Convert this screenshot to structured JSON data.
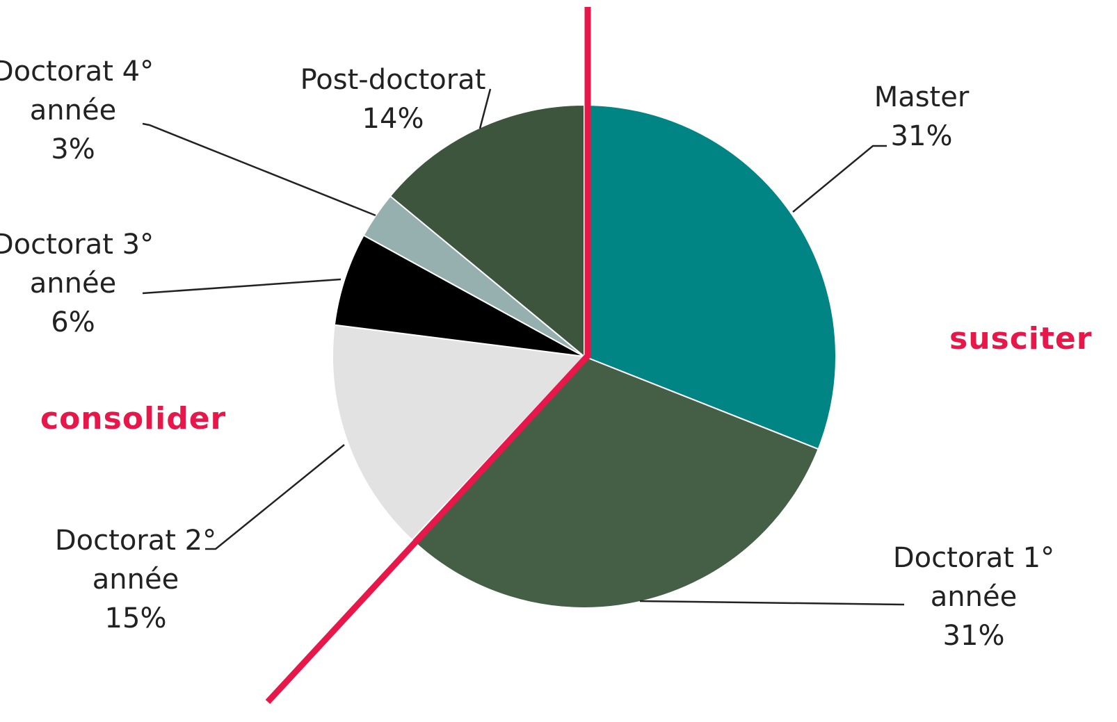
{
  "chart_data": {
    "type": "pie",
    "categories": [
      "Master",
      "Doctorat 1° année",
      "Doctorat 2° année",
      "Doctorat 3° année",
      "Doctorat 4° année",
      "Post-doctorat"
    ],
    "values": [
      31,
      31,
      15,
      6,
      3,
      14
    ],
    "value_labels": [
      "31%",
      "31%",
      "15%",
      "6%",
      "3%",
      "14%"
    ],
    "colors": [
      "#008584",
      "#445f45",
      "#e2e2e2",
      "#000000",
      "#95b0ae",
      "#3d553d"
    ],
    "annotations": [
      "susciter",
      "consolider"
    ]
  }
}
